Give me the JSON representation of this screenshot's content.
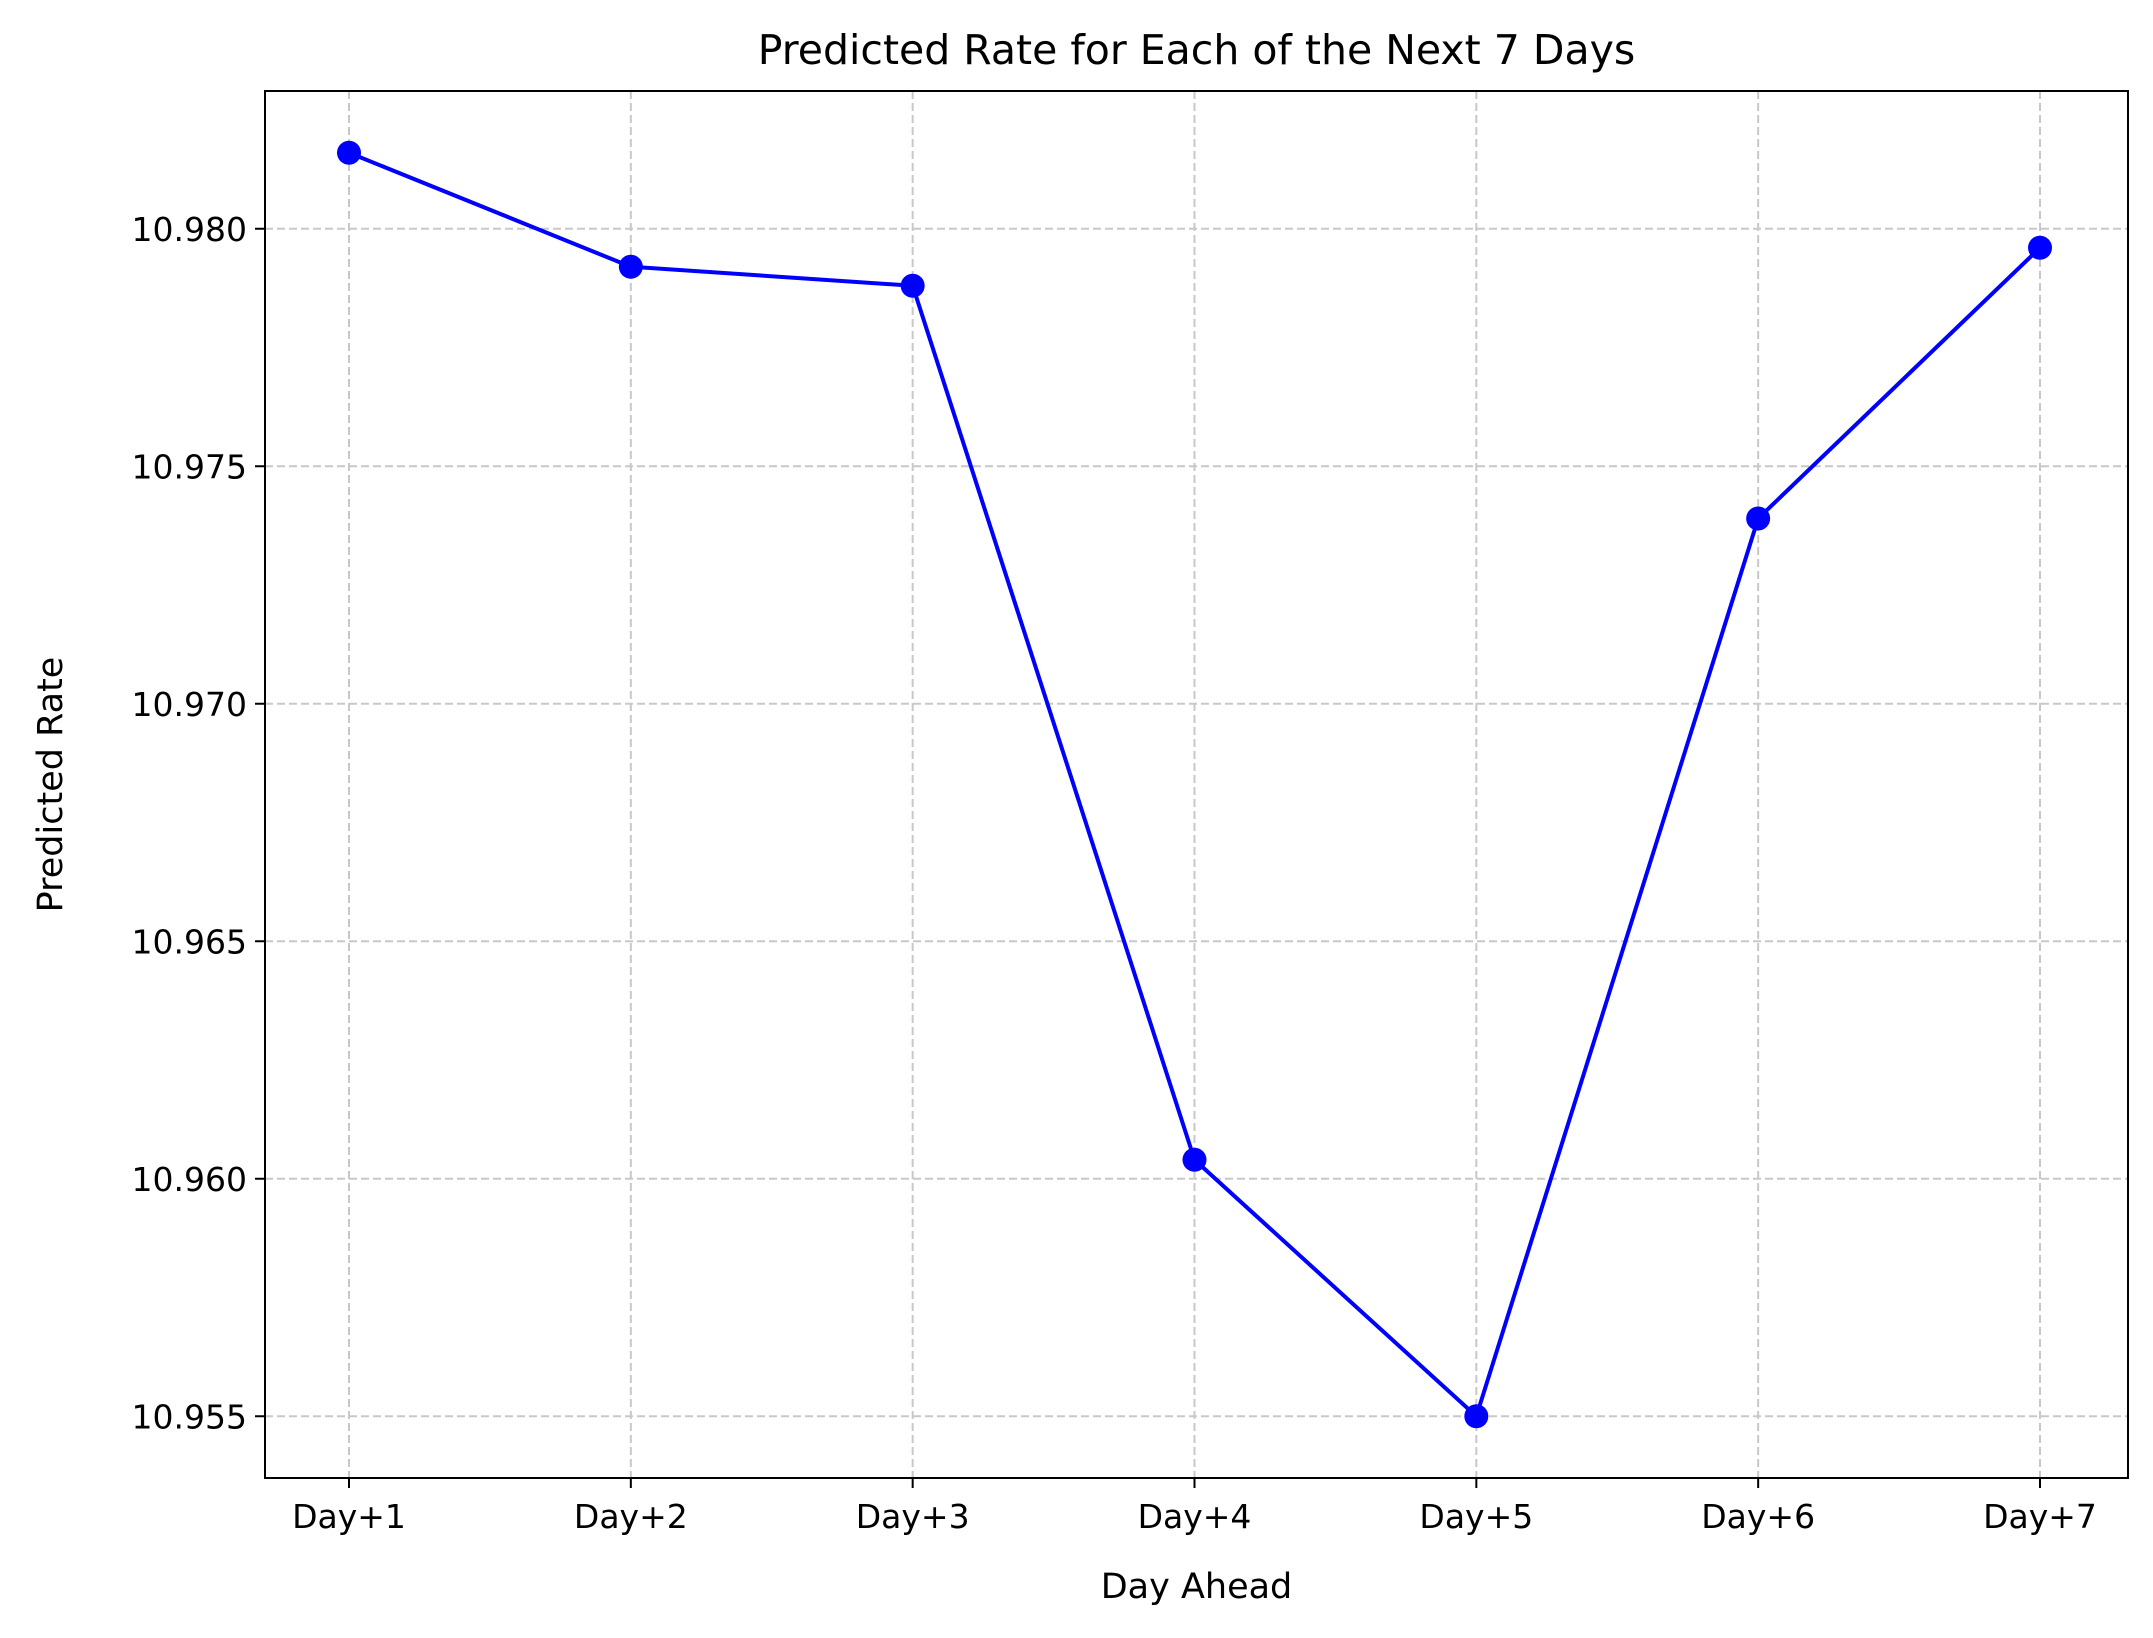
{
  "chart_data": {
    "type": "line",
    "title": "Predicted Rate for Each of the Next 7 Days",
    "xlabel": "Day Ahead",
    "ylabel": "Predicted Rate",
    "categories": [
      "Day+1",
      "Day+2",
      "Day+3",
      "Day+4",
      "Day+5",
      "Day+6",
      "Day+7"
    ],
    "series": [
      {
        "values": [
          10.9816,
          10.9792,
          10.9788,
          10.9604,
          10.955,
          10.9739,
          10.9796
        ],
        "color": "#0000ff",
        "marker": "circle"
      }
    ],
    "ylim": [
      10.9537,
      10.9829
    ],
    "yticks": [
      10.955,
      10.96,
      10.965,
      10.97,
      10.975,
      10.98
    ],
    "ytick_labels": [
      "10.955",
      "10.960",
      "10.965",
      "10.970",
      "10.975",
      "10.980"
    ],
    "grid": true,
    "grid_style": "dashed",
    "grid_color": "#c8c8c8",
    "legend": false
  }
}
